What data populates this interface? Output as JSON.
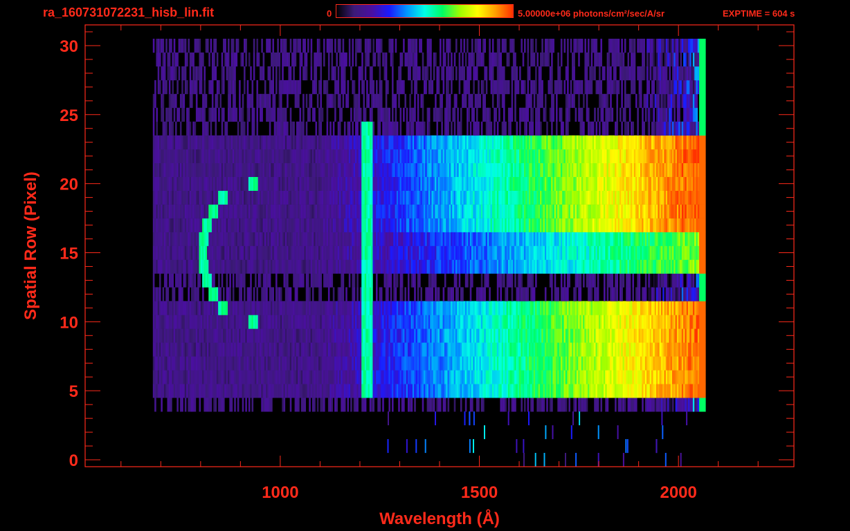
{
  "header": {
    "file_title": "ra_160731072231_hisb_lin.fit",
    "colorbar_min_label": "0",
    "colorbar_max_label": "5.00000e+06 photons/cm²/sec/A/sr",
    "exptime_label": "EXPTIME = 604 s"
  },
  "colors": {
    "axis": "#ff2a1a",
    "background": "#000000",
    "colormap": [
      "#000000",
      "#3c1a78",
      "#4a0fa0",
      "#1a1aff",
      "#0096ff",
      "#00ffe6",
      "#00ff64",
      "#a0ff00",
      "#ffff00",
      "#ffa000",
      "#ff3000"
    ]
  },
  "chart_data": {
    "type": "heatmap",
    "title": "ra_160731072231_hisb_lin.fit",
    "xlabel": "Wavelength (Å)",
    "ylabel": "Spatial Row (Pixel)",
    "xlim": [
      510,
      2290
    ],
    "ylim": [
      -0.5,
      31.5
    ],
    "x_ticks": [
      1000,
      1500,
      2000
    ],
    "y_ticks": [
      0,
      5,
      10,
      15,
      20,
      25,
      30
    ],
    "x_minor_step": 100,
    "y_minor_step": 1,
    "colorbar": {
      "min": 0,
      "max": 5000000,
      "units": "photons/cm²/sec/A/sr"
    },
    "detector_range": {
      "x": [
        680,
        2065
      ],
      "rows": [
        4,
        30
      ]
    },
    "illuminated_bands": [
      {
        "rows": [
          5,
          11
        ],
        "peak_fraction": 0.82
      },
      {
        "rows": [
          14,
          16
        ],
        "peak_fraction": 0.55
      },
      {
        "rows": [
          17,
          23
        ],
        "peak_fraction": 0.85
      }
    ],
    "features": [
      {
        "name": "Lyman-alpha",
        "wavelength": 1216,
        "rows": [
          5,
          24
        ]
      },
      {
        "name": "arc",
        "wavelength_range": [
          790,
          930
        ],
        "rows": [
          10,
          20
        ]
      }
    ],
    "grid": false,
    "legend": "none"
  }
}
